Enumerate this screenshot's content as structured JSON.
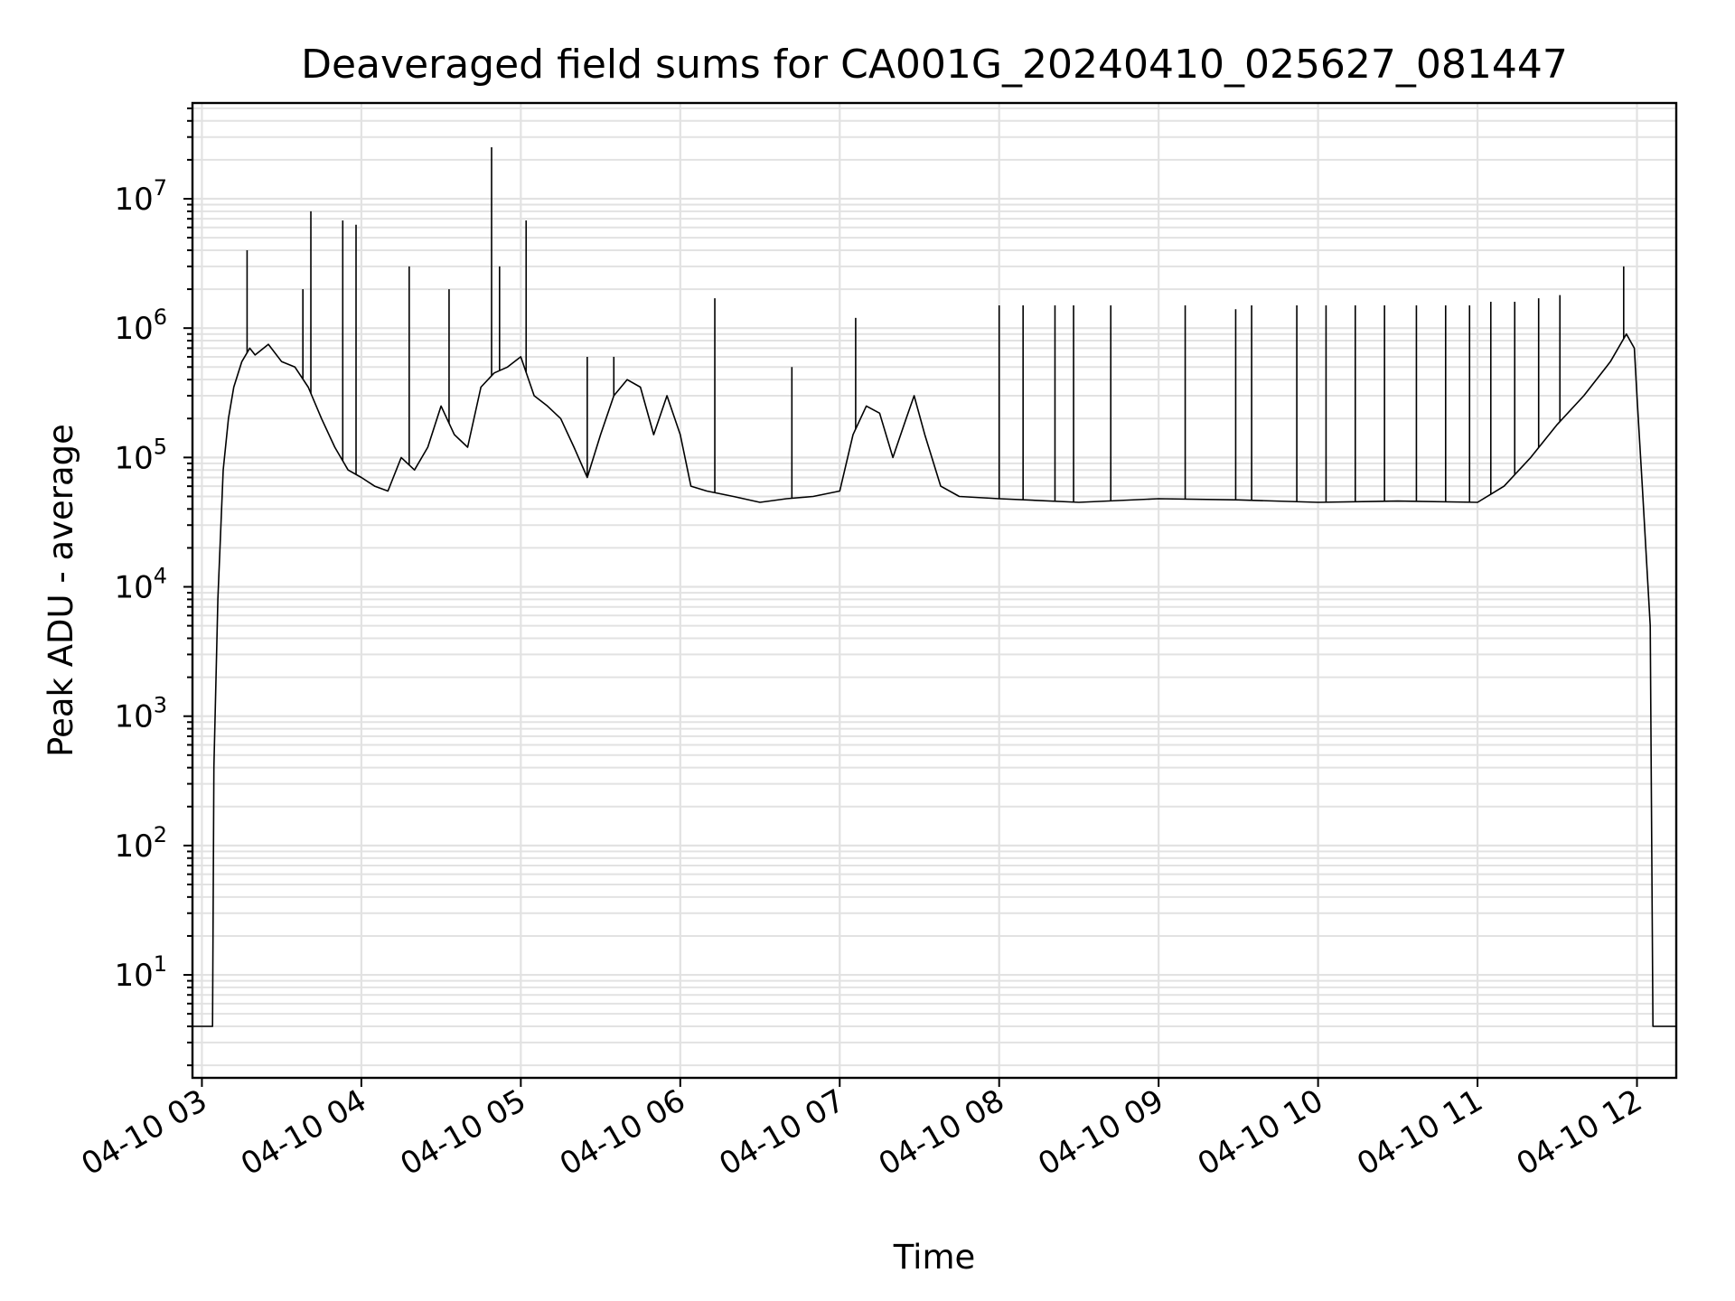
{
  "chart_data": {
    "type": "line",
    "title": "Deaveraged field sums for CA001G_20240410_025627_081447",
    "xlabel": "Time",
    "ylabel": "Peak ADU - average",
    "yscale": "log",
    "xlim": [
      "2024-04-10 02:56:27",
      "2024-04-10 12:14:47"
    ],
    "ylim": [
      1.6,
      55000000.0
    ],
    "grid": true,
    "legend": "none",
    "x_ticks": [
      {
        "t": "2024-04-10 03:00",
        "label": "04-10 03"
      },
      {
        "t": "2024-04-10 04:00",
        "label": "04-10 04"
      },
      {
        "t": "2024-04-10 05:00",
        "label": "04-10 05"
      },
      {
        "t": "2024-04-10 06:00",
        "label": "04-10 06"
      },
      {
        "t": "2024-04-10 07:00",
        "label": "04-10 07"
      },
      {
        "t": "2024-04-10 08:00",
        "label": "04-10 08"
      },
      {
        "t": "2024-04-10 09:00",
        "label": "04-10 09"
      },
      {
        "t": "2024-04-10 10:00",
        "label": "04-10 10"
      },
      {
        "t": "2024-04-10 11:00",
        "label": "04-10 11"
      },
      {
        "t": "2024-04-10 12:00",
        "label": "04-10 12"
      }
    ],
    "y_ticks": [
      {
        "v": 10,
        "base": "10",
        "exp": "1"
      },
      {
        "v": 100,
        "base": "10",
        "exp": "2"
      },
      {
        "v": 1000,
        "base": "10",
        "exp": "3"
      },
      {
        "v": 10000,
        "base": "10",
        "exp": "4"
      },
      {
        "v": 100000,
        "base": "10",
        "exp": "5"
      },
      {
        "v": 1000000,
        "base": "10",
        "exp": "6"
      },
      {
        "v": 10000000,
        "base": "10",
        "exp": "7"
      }
    ],
    "series": [
      {
        "color": "#000000",
        "points": [
          [
            "2024-04-10 02:56:27",
            4
          ],
          [
            "2024-04-10 03:04:00",
            4
          ],
          [
            "2024-04-10 03:04:30",
            400
          ],
          [
            "2024-04-10 03:06:00",
            8000
          ],
          [
            "2024-04-10 03:08:00",
            80000
          ],
          [
            "2024-04-10 03:10:00",
            200000
          ],
          [
            "2024-04-10 03:12:00",
            350000
          ],
          [
            "2024-04-10 03:15:00",
            550000
          ],
          [
            "2024-04-10 03:18:00",
            700000
          ],
          [
            "2024-04-10 03:20:00",
            620000
          ],
          [
            "2024-04-10 03:25:00",
            750000
          ],
          [
            "2024-04-10 03:30:00",
            550000
          ],
          [
            "2024-04-10 03:35:00",
            500000
          ],
          [
            "2024-04-10 03:40:00",
            350000
          ],
          [
            "2024-04-10 03:45:00",
            200000
          ],
          [
            "2024-04-10 03:50:00",
            120000
          ],
          [
            "2024-04-10 03:55:00",
            80000
          ],
          [
            "2024-04-10 04:00:00",
            70000
          ],
          [
            "2024-04-10 04:05:00",
            60000
          ],
          [
            "2024-04-10 04:10:00",
            55000
          ],
          [
            "2024-04-10 04:15:00",
            100000
          ],
          [
            "2024-04-10 04:20:00",
            80000
          ],
          [
            "2024-04-10 04:25:00",
            120000
          ],
          [
            "2024-04-10 04:30:00",
            250000
          ],
          [
            "2024-04-10 04:35:00",
            150000
          ],
          [
            "2024-04-10 04:40:00",
            120000
          ],
          [
            "2024-04-10 04:45:00",
            350000
          ],
          [
            "2024-04-10 04:50:00",
            450000
          ],
          [
            "2024-04-10 04:55:00",
            500000
          ],
          [
            "2024-04-10 05:00:00",
            600000
          ],
          [
            "2024-04-10 05:05:00",
            300000
          ],
          [
            "2024-04-10 05:10:00",
            250000
          ],
          [
            "2024-04-10 05:15:00",
            200000
          ],
          [
            "2024-04-10 05:20:00",
            120000
          ],
          [
            "2024-04-10 05:25:00",
            70000
          ],
          [
            "2024-04-10 05:30:00",
            150000
          ],
          [
            "2024-04-10 05:35:00",
            300000
          ],
          [
            "2024-04-10 05:40:00",
            400000
          ],
          [
            "2024-04-10 05:45:00",
            350000
          ],
          [
            "2024-04-10 05:50:00",
            150000
          ],
          [
            "2024-04-10 05:55:00",
            300000
          ],
          [
            "2024-04-10 06:00:00",
            150000
          ],
          [
            "2024-04-10 06:04:00",
            60000
          ],
          [
            "2024-04-10 06:10:00",
            55000
          ],
          [
            "2024-04-10 06:20:00",
            50000
          ],
          [
            "2024-04-10 06:30:00",
            45000
          ],
          [
            "2024-04-10 06:40:00",
            48000
          ],
          [
            "2024-04-10 06:50:00",
            50000
          ],
          [
            "2024-04-10 07:00:00",
            55000
          ],
          [
            "2024-04-10 07:05:00",
            150000
          ],
          [
            "2024-04-10 07:10:00",
            250000
          ],
          [
            "2024-04-10 07:15:00",
            220000
          ],
          [
            "2024-04-10 07:20:00",
            100000
          ],
          [
            "2024-04-10 07:25:00",
            200000
          ],
          [
            "2024-04-10 07:28:00",
            300000
          ],
          [
            "2024-04-10 07:32:00",
            150000
          ],
          [
            "2024-04-10 07:38:00",
            60000
          ],
          [
            "2024-04-10 07:45:00",
            50000
          ],
          [
            "2024-04-10 08:00:00",
            48000
          ],
          [
            "2024-04-10 08:30:00",
            45000
          ],
          [
            "2024-04-10 09:00:00",
            48000
          ],
          [
            "2024-04-10 09:30:00",
            47000
          ],
          [
            "2024-04-10 10:00:00",
            45000
          ],
          [
            "2024-04-10 10:30:00",
            46000
          ],
          [
            "2024-04-10 11:00:00",
            45000
          ],
          [
            "2024-04-10 11:10:00",
            60000
          ],
          [
            "2024-04-10 11:20:00",
            100000
          ],
          [
            "2024-04-10 11:30:00",
            180000
          ],
          [
            "2024-04-10 11:40:00",
            300000
          ],
          [
            "2024-04-10 11:50:00",
            550000
          ],
          [
            "2024-04-10 11:56:00",
            900000
          ],
          [
            "2024-04-10 11:59:00",
            700000
          ],
          [
            "2024-04-10 12:00:00",
            300000
          ],
          [
            "2024-04-10 12:02:00",
            60000
          ],
          [
            "2024-04-10 12:05:00",
            5000
          ],
          [
            "2024-04-10 12:06:00",
            4
          ],
          [
            "2024-04-10 12:14:47",
            4
          ]
        ]
      }
    ],
    "spikes": [
      [
        "2024-04-10 03:17:00",
        4000000
      ],
      [
        "2024-04-10 03:38:00",
        2000000
      ],
      [
        "2024-04-10 03:41:00",
        8000000
      ],
      [
        "2024-04-10 03:53:00",
        6800000
      ],
      [
        "2024-04-10 03:58:00",
        6300000
      ],
      [
        "2024-04-10 04:18:00",
        3000000
      ],
      [
        "2024-04-10 04:33:00",
        2000000
      ],
      [
        "2024-04-10 04:49:00",
        25000000
      ],
      [
        "2024-04-10 04:52:00",
        3000000
      ],
      [
        "2024-04-10 05:02:00",
        6800000
      ],
      [
        "2024-04-10 05:25:00",
        600000
      ],
      [
        "2024-04-10 05:35:00",
        600000
      ],
      [
        "2024-04-10 06:13:00",
        1700000
      ],
      [
        "2024-04-10 06:42:00",
        500000
      ],
      [
        "2024-04-10 07:06:00",
        1200000
      ],
      [
        "2024-04-10 08:00:00",
        1500000
      ],
      [
        "2024-04-10 08:09:00",
        1500000
      ],
      [
        "2024-04-10 08:21:00",
        1500000
      ],
      [
        "2024-04-10 08:28:00",
        1500000
      ],
      [
        "2024-04-10 08:42:00",
        1500000
      ],
      [
        "2024-04-10 09:10:00",
        1500000
      ],
      [
        "2024-04-10 09:29:00",
        1400000
      ],
      [
        "2024-04-10 09:35:00",
        1500000
      ],
      [
        "2024-04-10 09:52:00",
        1500000
      ],
      [
        "2024-04-10 10:03:00",
        1500000
      ],
      [
        "2024-04-10 10:14:00",
        1500000
      ],
      [
        "2024-04-10 10:25:00",
        1500000
      ],
      [
        "2024-04-10 10:37:00",
        1500000
      ],
      [
        "2024-04-10 10:48:00",
        1500000
      ],
      [
        "2024-04-10 10:57:00",
        1500000
      ],
      [
        "2024-04-10 11:05:00",
        1600000
      ],
      [
        "2024-04-10 11:14:00",
        1600000
      ],
      [
        "2024-04-10 11:23:00",
        1700000
      ],
      [
        "2024-04-10 11:31:00",
        1800000
      ],
      [
        "2024-04-10 11:55:00",
        3000000
      ]
    ]
  }
}
